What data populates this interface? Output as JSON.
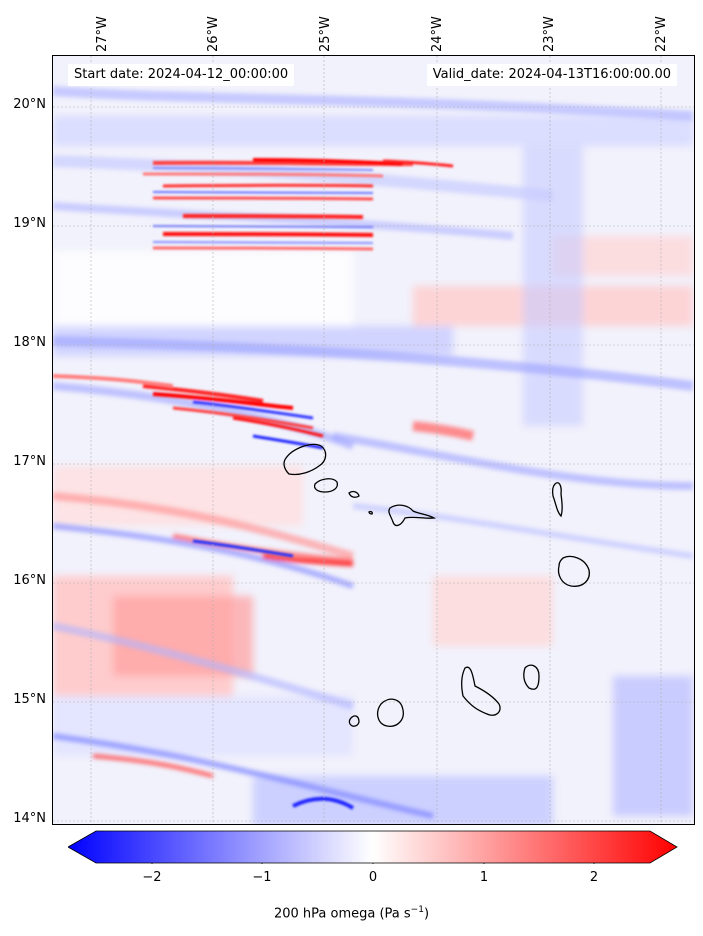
{
  "header": {
    "start_date": "Start date: 2024-04-12_00:00:00",
    "valid_date": "Valid_date: 2024-04-13T16:00:00.00"
  },
  "axes": {
    "lon_ticks": [
      "27°W",
      "26°W",
      "25°W",
      "24°W",
      "23°W",
      "22°W"
    ],
    "lat_ticks": [
      "20°N",
      "19°N",
      "18°N",
      "17°N",
      "16°N",
      "15°N",
      "14°N"
    ]
  },
  "colorbar": {
    "ticks": [
      "−2",
      "−1",
      "0",
      "1",
      "2"
    ],
    "label": "200 hPa omega (Pa s",
    "label_sup": "−1",
    "label_end": ")",
    "range": [
      -2.6,
      2.6
    ],
    "colors": {
      "negative": "#0000ff",
      "zero": "#ffffff",
      "positive": "#ff0000"
    }
  },
  "map": {
    "lon_range": [
      -27.3,
      -21.8
    ],
    "lat_range": [
      13.95,
      20.45
    ],
    "gridlines": true,
    "coastline_color": "#000000"
  }
}
